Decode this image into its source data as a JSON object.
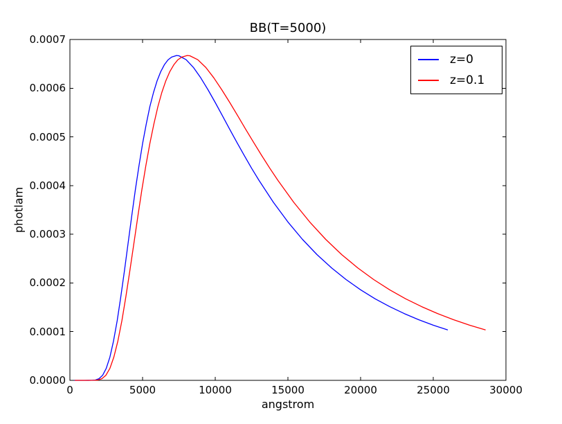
{
  "chart_data": {
    "type": "line",
    "title": "BB(T=5000)",
    "xlabel": "angstrom",
    "ylabel": "photlam",
    "xlim": [
      0,
      30000
    ],
    "ylim": [
      0,
      0.0007
    ],
    "grid": false,
    "axis_color": "#000000",
    "background_color": "#ffffff",
    "xticks": [
      0,
      5000,
      10000,
      15000,
      20000,
      25000,
      30000
    ],
    "xtick_labels": [
      "0",
      "5000",
      "10000",
      "15000",
      "20000",
      "25000",
      "30000"
    ],
    "yticks": [
      0,
      0.0001,
      0.0002,
      0.0003,
      0.0004,
      0.0005,
      0.0006,
      0.0007
    ],
    "ytick_labels": [
      "0.0000",
      "0.0001",
      "0.0002",
      "0.0003",
      "0.0004",
      "0.0005",
      "0.0006",
      "0.0007"
    ],
    "legend": {
      "position": "upper right",
      "entries": [
        "z=0",
        "z=0.1"
      ]
    },
    "series": [
      {
        "name": "z=0",
        "color": "#0000ff",
        "x": [
          300,
          500,
          1000,
          1500,
          1750,
          2000,
          2250,
          2500,
          2750,
          3000,
          3250,
          3500,
          3750,
          4000,
          4250,
          4500,
          4750,
          5000,
          5250,
          5500,
          5750,
          6000,
          6250,
          6500,
          6750,
          7000,
          7339,
          7500,
          8000,
          8500,
          9000,
          9500,
          10000,
          10500,
          11000,
          11500,
          12000,
          12500,
          13000,
          14000,
          15000,
          16000,
          17000,
          18000,
          19000,
          20000,
          21000,
          22000,
          23000,
          24000,
          25000,
          26000
        ],
        "y": [
          0,
          0,
          0,
          1e-07,
          7e-07,
          3.4e-06,
          1.04e-05,
          2.46e-05,
          4.78e-05,
          8.07e-05,
          0.0001223,
          0.0001713,
          0.0002249,
          0.0002807,
          0.000337,
          0.0003907,
          0.0004407,
          0.0004862,
          0.0005263,
          0.000562,
          0.0005912,
          0.0006152,
          0.0006341,
          0.0006482,
          0.0006582,
          0.0006639,
          0.0006671,
          0.0006665,
          0.0006584,
          0.0006425,
          0.0006213,
          0.0005969,
          0.0005705,
          0.0005431,
          0.0005153,
          0.0004881,
          0.0004615,
          0.0004357,
          0.0004112,
          0.0003657,
          0.0003253,
          0.0002896,
          0.0002583,
          0.000231,
          0.000207,
          0.0001859,
          0.0001675,
          0.0001514,
          0.0001371,
          0.0001245,
          0.0001133,
          0.0001034
        ]
      },
      {
        "name": "z=0.1",
        "color": "#ff0000",
        "x": [
          330,
          550,
          1100,
          1650,
          1925,
          2200,
          2475,
          2750,
          3025,
          3300,
          3575,
          3850,
          4125,
          4400,
          4675,
          4950,
          5225,
          5500,
          5775,
          6050,
          6325,
          6600,
          6875,
          7150,
          7425,
          7700,
          8073,
          8250,
          8800,
          9350,
          9900,
          10450,
          11000,
          11550,
          12100,
          12650,
          13200,
          13750,
          14300,
          15400,
          16500,
          17600,
          18700,
          19800,
          20900,
          22000,
          23100,
          24200,
          25300,
          26400,
          27500,
          28600
        ],
        "y": [
          0,
          0,
          0,
          1e-07,
          7e-07,
          3.4e-06,
          1.04e-05,
          2.46e-05,
          4.78e-05,
          8.07e-05,
          0.0001223,
          0.0001713,
          0.0002249,
          0.0002807,
          0.000337,
          0.0003907,
          0.0004407,
          0.0004862,
          0.0005263,
          0.000562,
          0.0005912,
          0.0006152,
          0.0006341,
          0.0006482,
          0.0006582,
          0.0006639,
          0.0006671,
          0.0006665,
          0.0006584,
          0.0006425,
          0.0006213,
          0.0005969,
          0.0005705,
          0.0005431,
          0.0005153,
          0.0004881,
          0.0004615,
          0.0004357,
          0.0004112,
          0.0003657,
          0.0003253,
          0.0002896,
          0.0002583,
          0.000231,
          0.000207,
          0.0001859,
          0.0001675,
          0.0001514,
          0.0001371,
          0.0001245,
          0.0001133,
          0.0001034
        ]
      }
    ]
  }
}
